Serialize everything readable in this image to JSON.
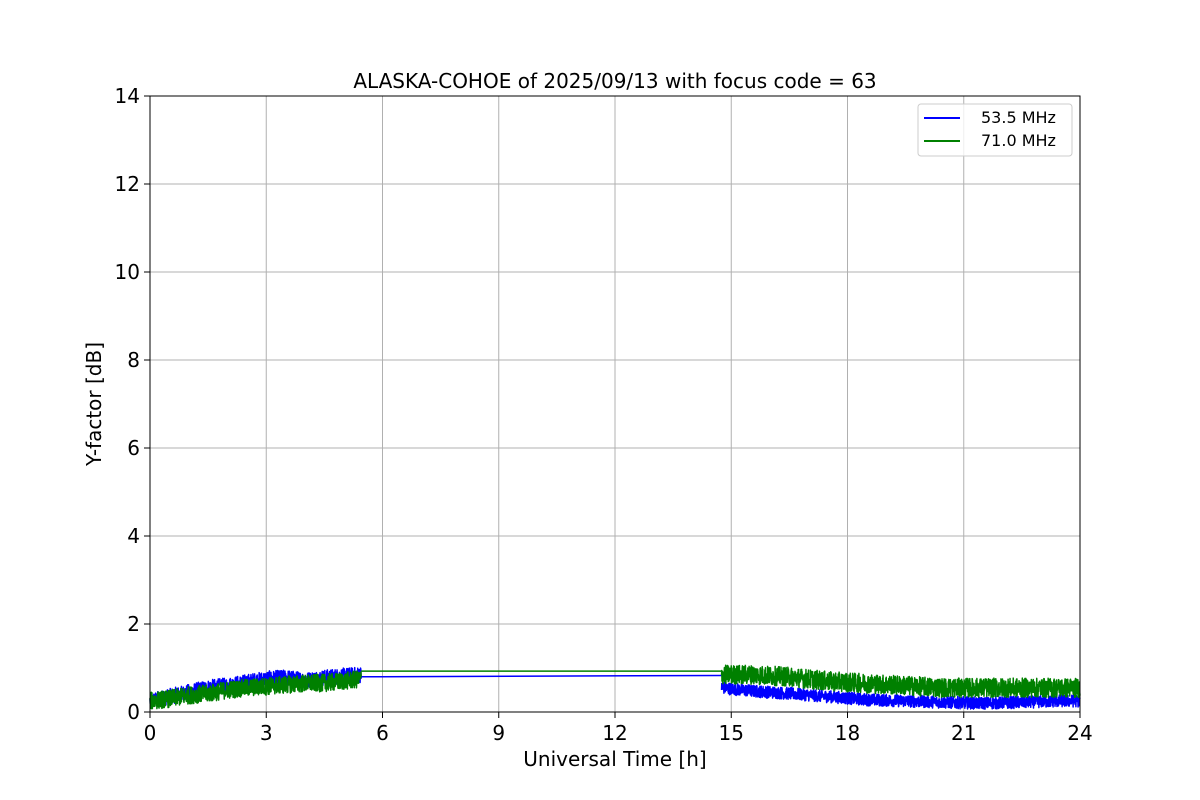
{
  "chart_data": {
    "type": "line",
    "title": "ALASKA-COHOE of 2025/09/13 with focus code = 63",
    "xlabel": "Universal Time [h]",
    "ylabel": "Y-factor [dB]",
    "xlim": [
      0,
      24
    ],
    "ylim": [
      0,
      14
    ],
    "xticks": [
      0,
      3,
      6,
      9,
      12,
      15,
      18,
      21,
      24
    ],
    "yticks": [
      0,
      2,
      4,
      6,
      8,
      10,
      12,
      14
    ],
    "grid": true,
    "legend_position": "upper right",
    "series": [
      {
        "name": "53.5 MHz",
        "color": "#0000ff",
        "segments": [
          {
            "x": [
              0.0,
              0.5,
              1.0,
              1.5,
              2.0,
              2.5,
              3.0,
              3.5,
              4.0,
              4.5,
              5.0,
              5.45
            ],
            "y": [
              0.25,
              0.35,
              0.45,
              0.55,
              0.6,
              0.68,
              0.75,
              0.78,
              0.72,
              0.78,
              0.82,
              0.85
            ],
            "noise": 0.18
          },
          {
            "x": [
              5.45,
              14.75
            ],
            "y": [
              0.8,
              0.83
            ],
            "noise": 0
          },
          {
            "x": [
              14.75,
              15.5,
              16.5,
              17.5,
              18.5,
              19.5,
              20.5,
              21.5,
              22.5,
              23.5,
              24.0
            ],
            "y": [
              0.55,
              0.48,
              0.42,
              0.35,
              0.28,
              0.25,
              0.22,
              0.2,
              0.22,
              0.25,
              0.25
            ],
            "noise": 0.14
          }
        ]
      },
      {
        "name": "71.0 MHz",
        "color": "#008000",
        "segments": [
          {
            "x": [
              0.0,
              0.5,
              1.0,
              1.5,
              2.0,
              2.5,
              3.0,
              3.5,
              4.0,
              4.5,
              5.0,
              5.45
            ],
            "y": [
              0.25,
              0.3,
              0.38,
              0.42,
              0.5,
              0.55,
              0.58,
              0.62,
              0.65,
              0.66,
              0.7,
              0.75
            ],
            "noise": 0.2
          },
          {
            "x": [
              5.45,
              14.75
            ],
            "y": [
              0.93,
              0.93
            ],
            "noise": 0
          },
          {
            "x": [
              14.75,
              15.5,
              16.5,
              17.5,
              18.5,
              19.5,
              20.5,
              21.5,
              22.5,
              23.5,
              24.0
            ],
            "y": [
              0.85,
              0.85,
              0.8,
              0.7,
              0.65,
              0.6,
              0.55,
              0.55,
              0.55,
              0.55,
              0.55
            ],
            "noise": 0.22
          }
        ]
      }
    ]
  }
}
